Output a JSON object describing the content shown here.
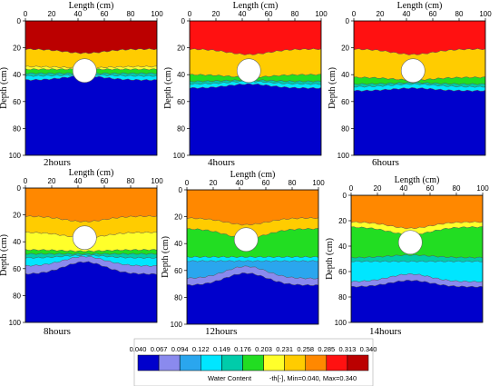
{
  "chart_data": {
    "type": "heatmap",
    "xlabel": "Length (cm)",
    "ylabel": "Depth (cm)",
    "xlim": [
      0,
      100
    ],
    "ylim": [
      0,
      100
    ],
    "x_ticks": [
      "0",
      "20",
      "40",
      "60",
      "80",
      "100"
    ],
    "y_ticks": [
      "0",
      "20",
      "40",
      "60",
      "80",
      "100"
    ],
    "panels": [
      {
        "label": "2hours",
        "bands": [
          {
            "class": 10,
            "top_edge": 0,
            "center_edge": 0
          },
          {
            "class": 7,
            "top_edge": 21,
            "center_edge": 24
          },
          {
            "class": 6,
            "top_edge": 34,
            "center_edge": 35
          },
          {
            "class": 5,
            "top_edge": 36,
            "center_edge": 36
          },
          {
            "class": 4,
            "top_edge": 39,
            "center_edge": 39
          },
          {
            "class": 3,
            "top_edge": 41,
            "center_edge": 40
          },
          {
            "class": 0,
            "top_edge": 44,
            "center_edge": 41
          }
        ]
      },
      {
        "label": "4hours",
        "bands": [
          {
            "class": 9,
            "top_edge": 0,
            "center_edge": 0
          },
          {
            "class": 7,
            "top_edge": 21,
            "center_edge": 25
          },
          {
            "class": 5,
            "top_edge": 40,
            "center_edge": 42
          },
          {
            "class": 4,
            "top_edge": 45,
            "center_edge": 44
          },
          {
            "class": 3,
            "top_edge": 47,
            "center_edge": 45
          },
          {
            "class": 0,
            "top_edge": 50,
            "center_edge": 47
          }
        ]
      },
      {
        "label": "6hours",
        "bands": [
          {
            "class": 9,
            "top_edge": 0,
            "center_edge": 0
          },
          {
            "class": 7,
            "top_edge": 21,
            "center_edge": 25
          },
          {
            "class": 5,
            "top_edge": 42,
            "center_edge": 44
          },
          {
            "class": 4,
            "top_edge": 47,
            "center_edge": 46
          },
          {
            "class": 3,
            "top_edge": 49,
            "center_edge": 47
          },
          {
            "class": 0,
            "top_edge": 52,
            "center_edge": 50
          }
        ]
      },
      {
        "label": "8hours",
        "bands": [
          {
            "class": 8,
            "top_edge": 0,
            "center_edge": 0
          },
          {
            "class": 7,
            "top_edge": 21,
            "center_edge": 25
          },
          {
            "class": 6,
            "top_edge": 33,
            "center_edge": 37
          },
          {
            "class": 5,
            "top_edge": 46,
            "center_edge": 47
          },
          {
            "class": 4,
            "top_edge": 49,
            "center_edge": 49
          },
          {
            "class": 3,
            "top_edge": 52,
            "center_edge": 50
          },
          {
            "class": 1,
            "top_edge": 58,
            "center_edge": 51
          },
          {
            "class": 0,
            "top_edge": 64,
            "center_edge": 55
          }
        ]
      },
      {
        "label": "12hours",
        "bands": [
          {
            "class": 8,
            "top_edge": 0,
            "center_edge": 0
          },
          {
            "class": 7,
            "top_edge": 21,
            "center_edge": 26
          },
          {
            "class": 5,
            "top_edge": 29,
            "center_edge": 36
          },
          {
            "class": 3,
            "top_edge": 50,
            "center_edge": 50
          },
          {
            "class": 2,
            "top_edge": 53,
            "center_edge": 53
          },
          {
            "class": 1,
            "top_edge": 66,
            "center_edge": 57
          },
          {
            "class": 0,
            "top_edge": 71,
            "center_edge": 62
          }
        ]
      },
      {
        "label": "14hours",
        "bands": [
          {
            "class": 8,
            "top_edge": 0,
            "center_edge": 0
          },
          {
            "class": 6,
            "top_edge": 21,
            "center_edge": 26
          },
          {
            "class": 5,
            "top_edge": 25,
            "center_edge": 31
          },
          {
            "class": 4,
            "top_edge": 49,
            "center_edge": 47
          },
          {
            "class": 3,
            "top_edge": 52,
            "center_edge": 52
          },
          {
            "class": 1,
            "top_edge": 68,
            "center_edge": 62
          },
          {
            "class": 0,
            "top_edge": 72,
            "center_edge": 67
          }
        ]
      }
    ],
    "inclusion": {
      "x": 45,
      "y": 37,
      "r": 9
    },
    "legend": {
      "placement": "bottom",
      "ticks": [
        "0.040",
        "0.067",
        "0.094",
        "0.122",
        "0.149",
        "0.176",
        "0.203",
        "0.231",
        "0.258",
        "0.285",
        "0.313",
        "0.340"
      ],
      "colors": [
        "#0000cc",
        "#8a8aee",
        "#2aa6ee",
        "#00e6ff",
        "#00ccaa",
        "#22dd22",
        "#ffff2a",
        "#ffcc00",
        "#ff8800",
        "#ff1111",
        "#bb0000"
      ],
      "title": "Water Content",
      "subtitle": "-th[-], Min=0.040, Max=0.340"
    }
  }
}
